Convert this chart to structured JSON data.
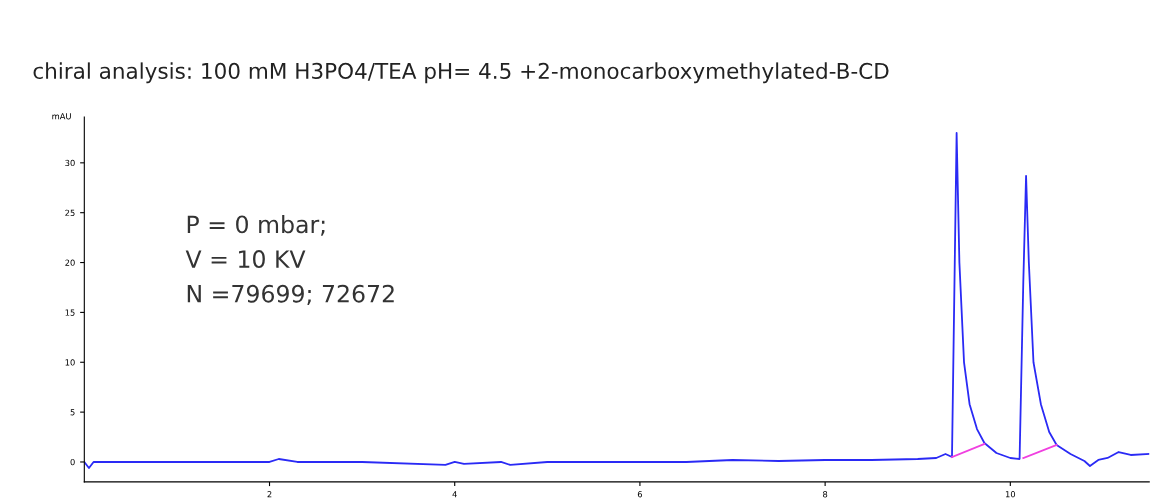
{
  "chart_data": {
    "type": "line",
    "title": "chiral analysis: 100 mM H3PO4/TEA pH= 4.5 +2-monocarboxymethylated-B-CD",
    "ylabel": "mAU",
    "annotations": [
      "P = 0 mbar;",
      "V = 10 KV",
      "N =79699; 72672"
    ],
    "xlim": [
      0,
      11.5
    ],
    "ylim": [
      -2,
      34.6
    ],
    "xticks": [
      2,
      4,
      6,
      8,
      10
    ],
    "yticks": [
      0,
      5,
      10,
      15,
      20,
      25,
      30
    ],
    "grid": false,
    "marker": "none",
    "line_style": "solid",
    "series": [
      {
        "color": "#2a2af5",
        "x": [
          0,
          0.05,
          0.1,
          0.2,
          1,
          2,
          2.1,
          2.3,
          3,
          3.9,
          4,
          4.1,
          4.5,
          4.6,
          5,
          6,
          6.5,
          7,
          7.5,
          8,
          8.5,
          9,
          9.2,
          9.3,
          9.37,
          9.4,
          9.42,
          9.45,
          9.5,
          9.56,
          9.64,
          9.72,
          9.85,
          10.0,
          10.1,
          10.14,
          10.17,
          10.2,
          10.25,
          10.33,
          10.42,
          10.5,
          10.65,
          10.8,
          10.86,
          10.95,
          11.05,
          11.17,
          11.3,
          11.5
        ],
        "values": [
          0,
          -0.6,
          0,
          0,
          0,
          0,
          0.3,
          0,
          0,
          -0.3,
          0,
          -0.2,
          0,
          -0.3,
          0,
          0,
          0,
          0.2,
          0.1,
          0.2,
          0.2,
          0.3,
          0.4,
          0.8,
          0.5,
          20,
          33,
          20,
          10,
          5.8,
          3.3,
          1.9,
          0.9,
          0.4,
          0.3,
          18,
          28.7,
          20,
          10,
          5.8,
          3.0,
          1.7,
          0.8,
          0.1,
          -0.4,
          0.2,
          0.4,
          1.0,
          0.7,
          0.8
        ]
      },
      {
        "color": "#f040e0",
        "x": [
          9.37,
          9.72
        ],
        "values": [
          0.5,
          1.8
        ]
      },
      {
        "color": "#f040e0",
        "x": [
          10.14,
          10.5
        ],
        "values": [
          0.4,
          1.7
        ]
      }
    ]
  }
}
